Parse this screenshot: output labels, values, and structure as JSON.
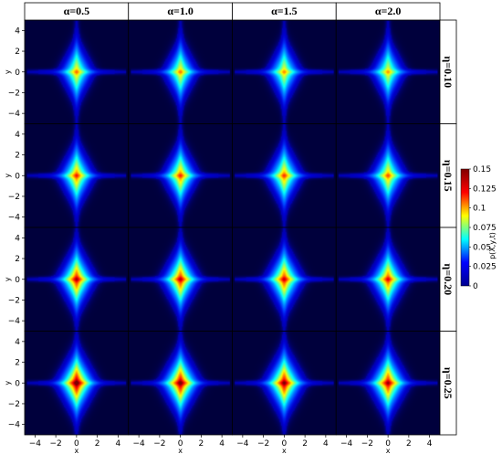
{
  "chart_data": {
    "type": "heatmap",
    "column_labels": [
      "α=0.5",
      "α=1.0",
      "α=1.5",
      "α=2.0"
    ],
    "row_labels": [
      "η=0.10",
      "η=0.15",
      "η=0.20",
      "η=0.25"
    ],
    "xlabel": "x",
    "ylabel": "y",
    "xlim": [
      -5,
      5
    ],
    "ylim": [
      -5,
      5
    ],
    "xticks": [
      -4,
      -2,
      0,
      2,
      4
    ],
    "yticks": [
      -4,
      -2,
      0,
      2,
      4
    ],
    "xtick_labels": [
      "−4",
      "−2",
      "0",
      "2",
      "4"
    ],
    "ytick_labels": [
      "−4",
      "−2",
      "0",
      "2",
      "4"
    ],
    "peak_values": [
      [
        0.085,
        0.083,
        0.08,
        0.078
      ],
      [
        0.1,
        0.098,
        0.095,
        0.09
      ],
      [
        0.118,
        0.115,
        0.112,
        0.107
      ],
      [
        0.135,
        0.13,
        0.126,
        0.12
      ]
    ],
    "colorbar": {
      "label": "p(X,y,t)",
      "range": [
        0,
        0.15
      ],
      "ticks": [
        0.15,
        0.125,
        0.1,
        0.075,
        0.05,
        0.025,
        0
      ],
      "tick_labels": [
        "0.15",
        "0.125",
        "0.1",
        "0.075",
        "0.05",
        "0.025",
        "0"
      ],
      "colormap": "jet",
      "colors": [
        "#00008f",
        "#0000ff",
        "#00ffff",
        "#ffff00",
        "#ff0000",
        "#800000"
      ]
    },
    "background_color": "#00003c"
  }
}
